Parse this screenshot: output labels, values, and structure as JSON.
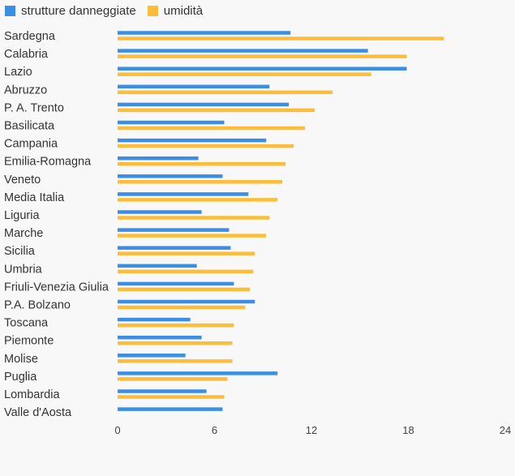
{
  "legend": {
    "series0": "strutture danneggiate",
    "series1": "umidità"
  },
  "colors": {
    "series0": "#3a8ee6",
    "series1": "#fbbd3a"
  },
  "chart_data": {
    "type": "bar",
    "orientation": "horizontal",
    "categories": [
      "Sardegna",
      "Calabria",
      "Lazio",
      "Abruzzo",
      "P. A. Trento",
      "Basilicata",
      "Campania",
      "Emilia-Romagna",
      "Veneto",
      "Media Italia",
      "Liguria",
      "Marche",
      "Sicilia",
      "Umbria",
      "Friuli-Venezia Giulia",
      "P.A. Bolzano",
      "Toscana",
      "Piemonte",
      "Molise",
      "Puglia",
      "Lombardia",
      "Valle d'Aosta"
    ],
    "series": [
      {
        "name": "strutture danneggiate",
        "values": [
          10.7,
          15.5,
          17.9,
          9.4,
          10.6,
          6.6,
          9.2,
          5.0,
          6.5,
          8.1,
          5.2,
          6.9,
          7.0,
          4.9,
          7.2,
          8.5,
          4.5,
          5.2,
          4.2,
          9.9,
          5.5,
          6.5
        ]
      },
      {
        "name": "umidità",
        "values": [
          20.2,
          17.9,
          15.7,
          13.3,
          12.2,
          11.6,
          10.9,
          10.4,
          10.2,
          9.9,
          9.4,
          9.2,
          8.5,
          8.4,
          8.2,
          7.9,
          7.2,
          7.1,
          7.1,
          6.8,
          6.6,
          0
        ]
      }
    ],
    "xticks": [
      "0",
      "6",
      "12",
      "18",
      "24"
    ],
    "xlim": [
      0,
      24
    ],
    "title": "",
    "xlabel": "",
    "ylabel": "",
    "legend_position": "top-left"
  }
}
